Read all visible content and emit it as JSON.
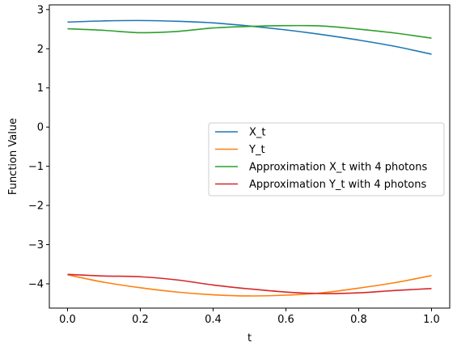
{
  "chart_data": {
    "type": "line",
    "xlabel": "t",
    "ylabel": "Function Value",
    "xlim": [
      -0.05,
      1.05
    ],
    "ylim": [
      -4.62,
      3.12
    ],
    "grid": false,
    "legend_position": "center-right",
    "x_ticks": [
      0.0,
      0.2,
      0.4,
      0.6,
      0.8,
      1.0
    ],
    "x_tick_labels": [
      "0.0",
      "0.2",
      "0.4",
      "0.6",
      "0.8",
      "1.0"
    ],
    "y_ticks": [
      -4,
      -3,
      -2,
      -1,
      0,
      1,
      2,
      3
    ],
    "y_tick_labels": [
      "−4",
      "−3",
      "−2",
      "−1",
      "0",
      "1",
      "2",
      "3"
    ],
    "x": [
      0.0,
      0.1,
      0.2,
      0.3,
      0.4,
      0.5,
      0.6,
      0.7,
      0.8,
      0.9,
      1.0
    ],
    "series": [
      {
        "name": "X_t",
        "color": "#1f77b4",
        "values": [
          2.68,
          2.71,
          2.72,
          2.7,
          2.66,
          2.58,
          2.48,
          2.36,
          2.22,
          2.06,
          1.86
        ]
      },
      {
        "name": "Y_t",
        "color": "#ff7f0e",
        "values": [
          -3.77,
          -3.96,
          -4.1,
          -4.21,
          -4.28,
          -4.31,
          -4.29,
          -4.23,
          -4.11,
          -3.97,
          -3.79
        ]
      },
      {
        "name": "Approximation X_t with 4 photons",
        "color": "#2ca02c",
        "values": [
          2.51,
          2.47,
          2.41,
          2.44,
          2.53,
          2.57,
          2.59,
          2.58,
          2.5,
          2.4,
          2.27
        ]
      },
      {
        "name": "Approximation Y_t with 4 photons",
        "color": "#d62728",
        "values": [
          -3.76,
          -3.8,
          -3.82,
          -3.9,
          -4.03,
          -4.13,
          -4.21,
          -4.25,
          -4.23,
          -4.17,
          -4.12
        ]
      }
    ]
  }
}
